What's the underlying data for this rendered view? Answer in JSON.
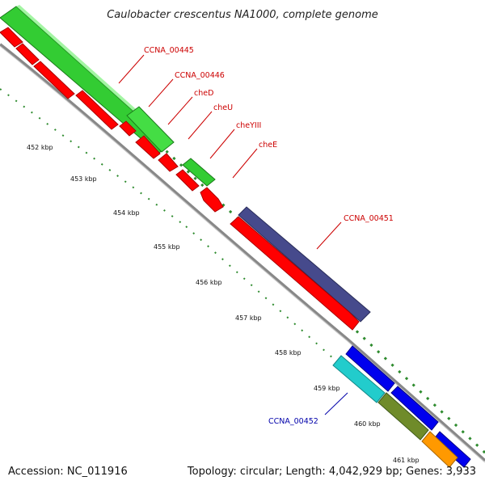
{
  "title": "Caulobacter crescentus NA1000, complete genome",
  "footer": {
    "accession": "Accession: NC_011916",
    "stats": "Topology: circular; Length: 4,042,929 bp; Genes: 3,933"
  },
  "colors": {
    "label_red": "#cc0000",
    "label_blue": "#0000aa",
    "backbone": "#888888",
    "tick_green": "#2e8b2e",
    "gene_red": "#ff0000",
    "gene_green": "#33cc33",
    "gene_purple": "#464a8c",
    "gene_blue": "#0000ee",
    "gene_cyan": "#22cccc",
    "gene_olive": "#6f8b2a",
    "gene_orange": "#ff9900"
  },
  "kbp_labels": [
    "452 kbp",
    "453 kbp",
    "454 kbp",
    "455 kbp",
    "456 kbp",
    "457 kbp",
    "458 kbp",
    "459 kbp",
    "460 kbp",
    "461 kbp"
  ],
  "gene_labels": [
    "CCNA_00445",
    "CCNA_00446",
    "cheD",
    "cheU",
    "cheYIII",
    "cheE",
    "CCNA_00451",
    "CCNA_00452"
  ]
}
